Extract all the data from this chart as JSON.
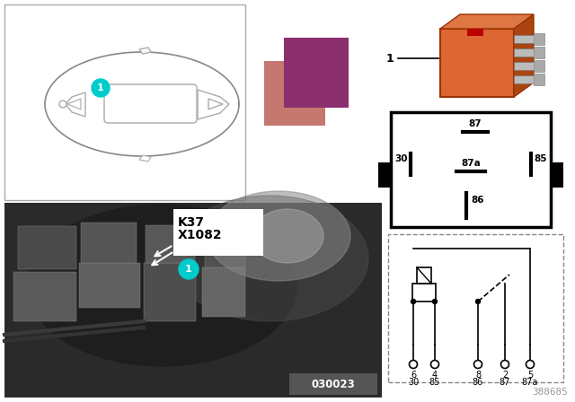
{
  "bg_color": "#ffffff",
  "title_ref": "388685",
  "color_swatch_purple": "#8B2F6F",
  "color_swatch_salmon": "#C47870",
  "relay_orange": "#CC5522",
  "relay_orange2": "#DD6633",
  "k37_label": "K37",
  "x1082_label": "X1082",
  "part_number": "030023",
  "cyan_color": "#00CCCC",
  "pin_num_row1": [
    "6",
    "4",
    "8",
    "2",
    "5"
  ],
  "pin_num_row2": [
    "30",
    "85",
    "86",
    "87",
    "87a"
  ]
}
